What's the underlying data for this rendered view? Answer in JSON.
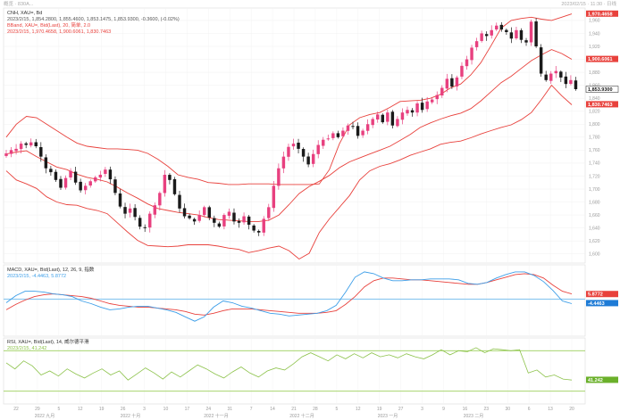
{
  "header": {
    "top_left": "概览 · 830A...",
    "top_right": "2023/02/15 · 11:30 · 日线"
  },
  "main_panel": {
    "line1": "CNH, XAU=, Bd",
    "line2": "2023/2/15, 1,854.2800, 1,855.4600, 1,853.1475, 1,853.9300, -0.3600, (-0.02%)",
    "line3": "BBand, XAU=, Bid(Last), 20, 简单, 2.0",
    "line4": "2023/2/15, 1,970.4658, 1,900.6061, 1,830.7463",
    "price_tags": [
      {
        "label": "1,970.4658",
        "color": "#e8413c",
        "value": 1970.4658
      },
      {
        "label": "1,900.6061",
        "color": "#e8413c",
        "value": 1900.6061
      },
      {
        "label": "1,853.9300",
        "color": "#1a1a1a",
        "value": 1853.93
      },
      {
        "label": "1,830.7463",
        "color": "#e8413c",
        "value": 1830.7463
      }
    ]
  },
  "macd_panel": {
    "line1": "MACD, XAU=, Bid(Last), 12, 26, 9, 指数",
    "line2": "2023/2/15, -4.4463, 5.8772",
    "tags": [
      {
        "label": "5.8772",
        "color": "#e8413c",
        "value": 5.8772
      },
      {
        "label": "-4.4463",
        "color": "#1e7bd6",
        "value": -4.4463
      }
    ]
  },
  "rsi_panel": {
    "line1": "RSI, XAU=, Bid(Last), 14, 威尔德平滑",
    "line2": "2023/2/15, 41.242",
    "tags": [
      {
        "label": "41.242",
        "color": "#6ab02a",
        "value": 41.242
      }
    ]
  },
  "x_axis": {
    "day_ticks": [
      "22",
      "29",
      "5",
      "12",
      "19",
      "26",
      "3",
      "10",
      "17",
      "24",
      "31",
      "7",
      "14",
      "21",
      "28",
      "5",
      "12",
      "19",
      "27",
      "3",
      "9",
      "16",
      "23",
      "30",
      "6",
      "13",
      "20"
    ],
    "month_labels": [
      "2022 九月",
      "2022 十月",
      "2022 十一月",
      "2022 十二月",
      "2023 一月",
      "2023 二月"
    ]
  },
  "colors": {
    "up": "#e8407f",
    "down": "#1a1a1a",
    "band": "#e8413c",
    "macd": "#3c9ee8",
    "signal": "#e8413c",
    "rsi": "#8cc24a"
  },
  "chart_data": [
    {
      "type": "candlestick",
      "title": "CNH, XAU=, Bd",
      "ylim": [
        1590,
        1975
      ],
      "y_ticks": [
        1600,
        1620,
        1640,
        1660,
        1680,
        1700,
        1720,
        1740,
        1760,
        1780,
        1800,
        1820,
        1840,
        1860,
        1880,
        1900,
        1920,
        1940,
        1960
      ],
      "series": [
        {
          "name": "Close",
          "values": [
            1755,
            1760,
            1762,
            1770,
            1768,
            1772,
            1766,
            1750,
            1732,
            1726,
            1714,
            1702,
            1717,
            1728,
            1710,
            1698,
            1705,
            1712,
            1718,
            1722,
            1730,
            1715,
            1694,
            1673,
            1662,
            1670,
            1657,
            1642,
            1640,
            1662,
            1675,
            1694,
            1722,
            1714,
            1692,
            1670,
            1658,
            1655,
            1650,
            1660,
            1672,
            1656,
            1648,
            1642,
            1660,
            1665,
            1650,
            1648,
            1658,
            1645,
            1636,
            1633,
            1654,
            1672,
            1705,
            1732,
            1750,
            1765,
            1770,
            1762,
            1750,
            1738,
            1754,
            1768,
            1776,
            1778,
            1786,
            1780,
            1790,
            1798,
            1796,
            1782,
            1790,
            1800,
            1808,
            1815,
            1803,
            1818,
            1798,
            1808,
            1818,
            1822,
            1818,
            1832,
            1822,
            1835,
            1838,
            1845,
            1856,
            1870,
            1858,
            1872,
            1890,
            1900,
            1918,
            1928,
            1940,
            1936,
            1945,
            1952,
            1946,
            1942,
            1932,
            1945,
            1930,
            1926,
            1958,
            1920,
            1878,
            1868,
            1878,
            1882,
            1872,
            1862,
            1868,
            1854
          ]
        },
        {
          "name": "BB Upper",
          "values": [
            1780,
            1800,
            1812,
            1810,
            1800,
            1790,
            1780,
            1771,
            1766,
            1764,
            1762,
            1762,
            1761,
            1760,
            1755,
            1746,
            1735,
            1722,
            1718,
            1715,
            1710,
            1709,
            1707,
            1707,
            1708,
            1708,
            1708,
            1707,
            1707,
            1707,
            1707,
            1708,
            1730,
            1770,
            1799,
            1810,
            1815,
            1818,
            1826,
            1835,
            1836,
            1837,
            1840,
            1846,
            1856,
            1862,
            1876,
            1895,
            1921,
            1948,
            1960,
            1963,
            1965,
            1962,
            1960,
            1965,
            1970
          ]
        },
        {
          "name": "BB Middle",
          "values": [
            1754,
            1757,
            1759,
            1750,
            1742,
            1734,
            1730,
            1723,
            1718,
            1715,
            1711,
            1703,
            1694,
            1686,
            1677,
            1670,
            1667,
            1664,
            1662,
            1660,
            1656,
            1653,
            1652,
            1651,
            1650,
            1650,
            1652,
            1660,
            1676,
            1693,
            1704,
            1712,
            1721,
            1733,
            1742,
            1748,
            1754,
            1760,
            1766,
            1775,
            1784,
            1795,
            1802,
            1808,
            1813,
            1817,
            1824,
            1836,
            1850,
            1864,
            1874,
            1886,
            1898,
            1907,
            1915,
            1909,
            1900
          ]
        },
        {
          "name": "BB Lower",
          "values": [
            1728,
            1714,
            1708,
            1701,
            1688,
            1680,
            1676,
            1675,
            1670,
            1667,
            1662,
            1648,
            1634,
            1621,
            1613,
            1612,
            1611,
            1612,
            1614,
            1614,
            1614,
            1612,
            1609,
            1607,
            1602,
            1605,
            1609,
            1612,
            1605,
            1592,
            1601,
            1633,
            1654,
            1672,
            1690,
            1714,
            1728,
            1735,
            1739,
            1745,
            1752,
            1757,
            1762,
            1769,
            1772,
            1774,
            1779,
            1785,
            1790,
            1795,
            1799,
            1807,
            1818,
            1838,
            1860,
            1844,
            1830
          ]
        }
      ]
    },
    {
      "type": "line",
      "title": "MACD, XAU=, Bid(Last), 12, 26, 9",
      "ylim": [
        -40,
        36
      ],
      "series": [
        {
          "name": "MACD",
          "values": [
            -4,
            4,
            9,
            9,
            8,
            6,
            5,
            3,
            -2,
            -5,
            -9,
            -12,
            -11,
            -9,
            -8,
            -8,
            -10,
            -12,
            -15,
            -20,
            -25,
            -20,
            -9,
            -2,
            -4,
            -8,
            -10,
            -13,
            -16,
            -17,
            -19,
            -18,
            -17,
            -16,
            -13,
            -7,
            8,
            25,
            31,
            29,
            24,
            21,
            21,
            22,
            22,
            23,
            23,
            23,
            22,
            18,
            17,
            19,
            24,
            28,
            31,
            31,
            27,
            20,
            10,
            -2,
            -5
          ]
        },
        {
          "name": "Signal",
          "values": [
            -12,
            -6,
            -1,
            3,
            5,
            6,
            5,
            4,
            3,
            1,
            -2,
            -5,
            -7,
            -8,
            -9,
            -9,
            -10,
            -11,
            -12,
            -14,
            -17,
            -18,
            -16,
            -13,
            -11,
            -11,
            -11,
            -12,
            -13,
            -14,
            -15,
            -16,
            -16,
            -16,
            -15,
            -13,
            -6,
            3,
            14,
            21,
            24,
            24,
            23,
            22,
            22,
            21,
            20,
            19,
            18,
            17,
            17,
            19,
            22,
            25,
            28,
            29,
            28,
            24,
            16,
            9,
            6
          ]
        }
      ]
    },
    {
      "type": "line",
      "title": "RSI, XAU=, Bid(Last), 14",
      "ylim": [
        20,
        80
      ],
      "reference_lines": [
        70,
        30
      ],
      "series": [
        {
          "name": "RSI",
          "values": [
            58,
            52,
            60,
            55,
            46,
            50,
            45,
            52,
            47,
            43,
            48,
            52,
            46,
            50,
            41,
            47,
            53,
            48,
            42,
            49,
            44,
            50,
            56,
            52,
            47,
            43,
            49,
            54,
            48,
            44,
            50,
            53,
            51,
            57,
            64,
            68,
            64,
            60,
            66,
            62,
            67,
            63,
            68,
            64,
            66,
            63,
            67,
            64,
            62,
            66,
            71,
            66,
            70,
            69,
            73,
            68,
            72,
            71,
            70,
            71,
            48,
            51,
            44,
            46,
            42,
            41
          ]
        }
      ]
    }
  ]
}
